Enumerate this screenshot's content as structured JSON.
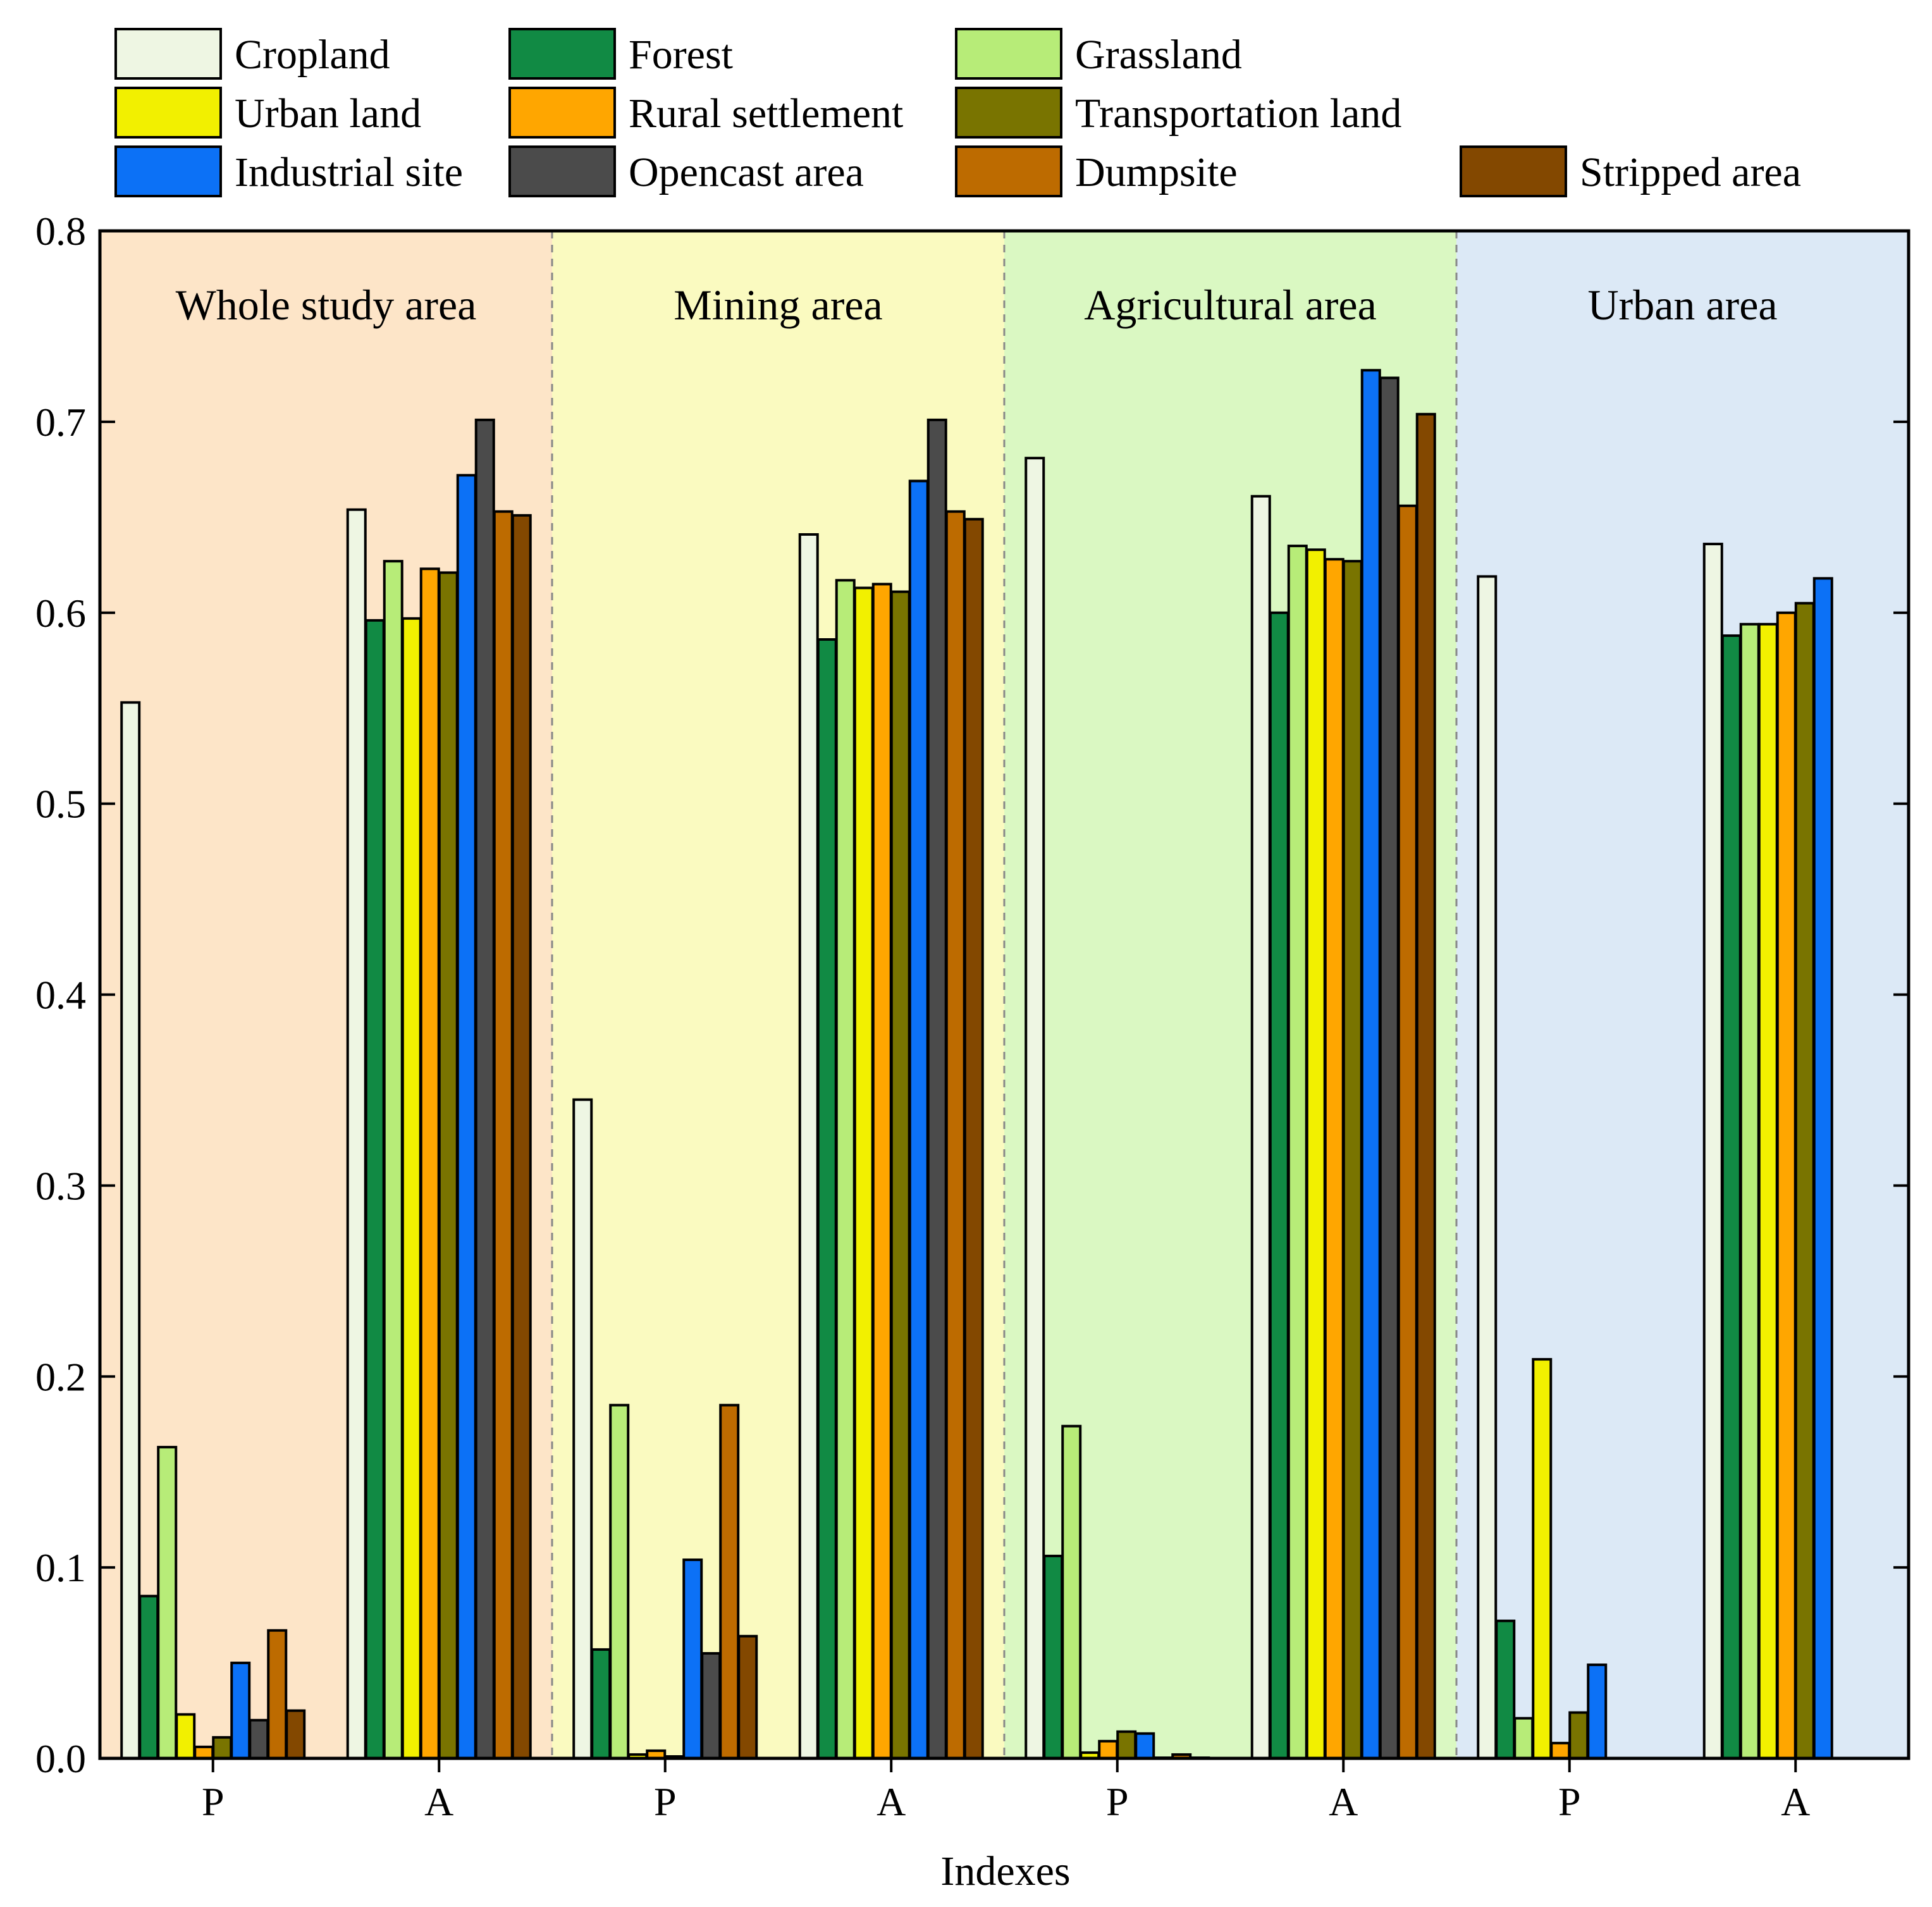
{
  "chart_data": {
    "type": "bar",
    "ylabel": "",
    "xlabel": "Indexes",
    "ylim": [
      0,
      0.8
    ],
    "yticks": [
      "0.0",
      "0.1",
      "0.2",
      "0.3",
      "0.4",
      "0.5",
      "0.6",
      "0.7",
      "0.8"
    ],
    "index_labels": [
      "P",
      "A"
    ],
    "legend": [
      {
        "name": "Cropland",
        "color": "#eef6e3"
      },
      {
        "name": "Forest",
        "color": "#118a44"
      },
      {
        "name": "Grassland",
        "color": "#b7ec78"
      },
      {
        "name": "Urban land",
        "color": "#f2f000"
      },
      {
        "name": "Rural settlement",
        "color": "#ffa600"
      },
      {
        "name": "Transportation land",
        "color": "#797400"
      },
      {
        "name": "Industrial site",
        "color": "#0c71f6"
      },
      {
        "name": "Opencast area",
        "color": "#4b4b4b"
      },
      {
        "name": "Dumpsite",
        "color": "#bd6b00"
      },
      {
        "name": "Stripped area",
        "color": "#834800"
      }
    ],
    "panels": [
      {
        "title": "Whole study area",
        "background": "#fde5c8",
        "groups": [
          {
            "index": "P",
            "values": [
              0.553,
              0.085,
              0.163,
              0.023,
              0.006,
              0.011,
              0.05,
              0.02,
              0.067,
              0.025
            ]
          },
          {
            "index": "A",
            "values": [
              0.654,
              0.596,
              0.627,
              0.597,
              0.623,
              0.621,
              0.672,
              0.701,
              0.653,
              0.651
            ]
          }
        ]
      },
      {
        "title": "Mining area",
        "background": "#fafac0",
        "groups": [
          {
            "index": "P",
            "values": [
              0.345,
              0.057,
              0.185,
              0.002,
              0.004,
              0.001,
              0.104,
              0.055,
              0.185,
              0.064
            ]
          },
          {
            "index": "A",
            "values": [
              0.641,
              0.586,
              0.617,
              0.613,
              0.615,
              0.611,
              0.669,
              0.701,
              0.653,
              0.649
            ]
          }
        ]
      },
      {
        "title": "Agricultural area",
        "background": "#daf8c2",
        "groups": [
          {
            "index": "P",
            "values": [
              0.681,
              0.106,
              0.174,
              0.003,
              0.009,
              0.014,
              0.013,
              0,
              0.002,
              0
            ]
          },
          {
            "index": "A",
            "values": [
              0.661,
              0.6,
              0.635,
              0.633,
              0.628,
              0.627,
              0.727,
              0.723,
              0.656,
              0.704
            ]
          }
        ]
      },
      {
        "title": "Urban area",
        "background": "#dce9f6",
        "groups": [
          {
            "index": "P",
            "values": [
              0.619,
              0.072,
              0.021,
              0.209,
              0.008,
              0.024,
              0.049,
              null,
              null,
              null
            ]
          },
          {
            "index": "A",
            "values": [
              0.636,
              0.588,
              0.594,
              0.594,
              0.6,
              0.605,
              0.618,
              null,
              null,
              null
            ]
          }
        ]
      }
    ]
  }
}
